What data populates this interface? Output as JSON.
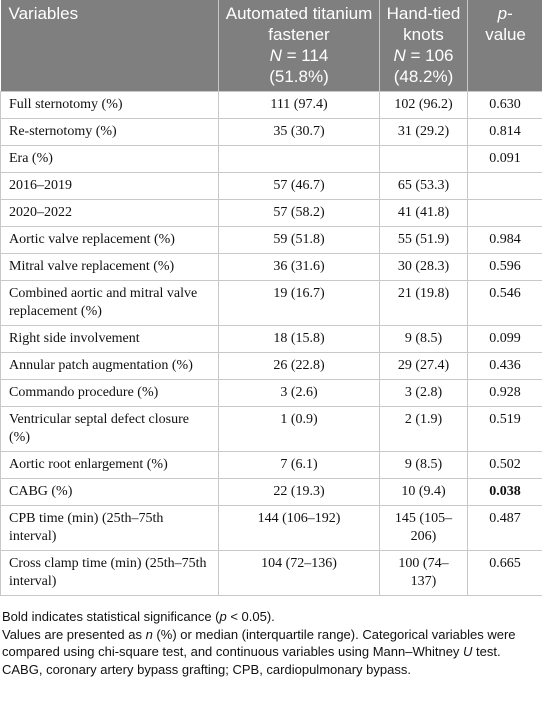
{
  "header": {
    "variables": "Variables",
    "group1": {
      "title": "Automated titanium fastener",
      "n_symbol": "N",
      "n_text": "= 114",
      "pct": "(51.8%)"
    },
    "group2": {
      "title": "Hand-tied knots",
      "n_symbol": "N",
      "n_text": "= 106",
      "pct": "(48.2%)"
    },
    "pvalue": {
      "symbol": "p",
      "rest": "-value"
    }
  },
  "table": {
    "rows": [
      {
        "label": "Full sternotomy (%)",
        "g1": "111 (97.4)",
        "g2": "102 (96.2)",
        "p": "0.630"
      },
      {
        "label": "Re-sternotomy (%)",
        "g1": "35 (30.7)",
        "g2": "31 (29.2)",
        "p": "0.814"
      },
      {
        "label": "Era (%)",
        "g1": null,
        "g2": null,
        "p": "0.091"
      },
      {
        "label": "2016–2019",
        "g1": "57 (46.7)",
        "g2": "65 (53.3)",
        "p": null
      },
      {
        "label": "2020–2022",
        "g1": "57 (58.2)",
        "g2": "41 (41.8)",
        "p": null
      },
      {
        "label": "Aortic valve replacement (%)",
        "g1": "59 (51.8)",
        "g2": "55 (51.9)",
        "p": "0.984"
      },
      {
        "label": "Mitral valve replacement (%)",
        "g1": "36 (31.6)",
        "g2": "30 (28.3)",
        "p": "0.596"
      },
      {
        "label": "Combined aortic and mitral valve replacement (%)",
        "g1": "19 (16.7)",
        "g2": "21 (19.8)",
        "p": "0.546"
      },
      {
        "label": "Right side involvement",
        "g1": "18 (15.8)",
        "g2": "9 (8.5)",
        "p": "0.099"
      },
      {
        "label": "Annular patch augmentation (%)",
        "g1": "26 (22.8)",
        "g2": "29 (27.4)",
        "p": "0.436"
      },
      {
        "label": "Commando procedure (%)",
        "g1": "3 (2.6)",
        "g2": "3 (2.8)",
        "p": "0.928"
      },
      {
        "label": "Ventricular septal defect closure (%)",
        "g1": "1 (0.9)",
        "g2": "2 (1.9)",
        "p": "0.519"
      },
      {
        "label": "Aortic root enlargement (%)",
        "g1": "7 (6.1)",
        "g2": "9 (8.5)",
        "p": "0.502"
      },
      {
        "label": "CABG (%)",
        "g1": "22 (19.3)",
        "g2": "10 (9.4)",
        "p": "0.038",
        "significant": true
      },
      {
        "label": "CPB time (min) (25th–75th interval)",
        "g1": "144 (106–192)",
        "g2": "145 (105–206)",
        "p": "0.487"
      },
      {
        "label": "Cross clamp time (min) (25th–75th interval)",
        "g1": "104 (72–136)",
        "g2": "100 (74–137)",
        "p": "0.665"
      }
    ]
  },
  "footnotes": [
    [
      {
        "text": "Bold indicates statistical significance ("
      },
      {
        "text": "p",
        "italic": true
      },
      {
        "text": " < 0.05)."
      }
    ],
    [
      {
        "text": "Values are presented as "
      },
      {
        "text": "n",
        "italic": true
      },
      {
        "text": " (%) or median (interquartile range). Categorical variables were compared using chi-square test, and continuous variables using Mann–Whitney "
      },
      {
        "text": "U",
        "italic": true
      },
      {
        "text": " test."
      }
    ],
    [
      {
        "text": "CABG, coronary artery bypass grafting; CPB, cardiopulmonary bypass."
      }
    ]
  ]
}
